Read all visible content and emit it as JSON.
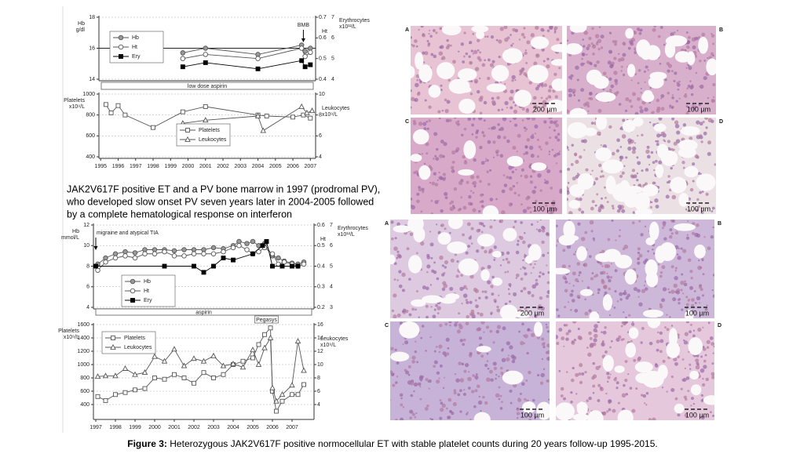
{
  "note_lines": [
    "JAK2V617F positive ET and a PV bone marrow in 1997 (prodromal PV),",
    "who developed slow onset PV seven years later in 2004-2005 followed",
    "by a complete hematological response on interferon"
  ],
  "caption": {
    "label": "Figure 3:",
    "text": "Heterozygous JAK2V617F positive normocellular ET with stable platelet counts during 20 years follow-up 1995-2015."
  },
  "histology": [
    [
      {
        "label": "A",
        "scale": "200 µm"
      },
      {
        "label": "B",
        "scale": "100 µm"
      },
      {
        "label": "C",
        "scale": "100 µm"
      },
      {
        "label": "D",
        "scale": "100 µm"
      }
    ],
    [
      {
        "label": "A",
        "scale": "200 µm"
      },
      {
        "label": "B",
        "scale": "100 µm"
      },
      {
        "label": "C",
        "scale": "100 µm"
      },
      {
        "label": "D",
        "scale": "100 µm"
      }
    ]
  ],
  "chart_data": [
    {
      "type": "line",
      "xlim": [
        1994.9,
        2007.3
      ],
      "ylim": [
        14,
        18
      ],
      "yticks": [
        14,
        16,
        18
      ],
      "y2lim": [
        0.4,
        0.7
      ],
      "y2ticks": [
        0.4,
        0.5,
        0.6,
        0.7
      ],
      "y3lim": [
        4,
        7
      ],
      "y3ticks": [
        4,
        5,
        6,
        7
      ],
      "grid": true,
      "hlines": [
        16
      ],
      "ylabel": [
        "Hb",
        "g/dl"
      ],
      "y2label": [
        "Ht"
      ],
      "y3label": [
        "Erythrocytes",
        "x10¹²/L"
      ],
      "band": "low dose aspirin",
      "annotations": [
        {
          "text": "BMB",
          "x": 2006.6
        }
      ],
      "series": [
        {
          "name": "Hb",
          "color": "#555555",
          "fill": "#999999",
          "marker": "circle",
          "x": [
            1999.7,
            2001,
            2004,
            2006.5,
            2006.7,
            2007
          ],
          "values": [
            15.7,
            16.0,
            15.6,
            16.2,
            15.8,
            16.0
          ]
        },
        {
          "name": "Ht",
          "axis": "y2",
          "color": "#555555",
          "fill": "#ffffff",
          "marker": "circle",
          "x": [
            1999.7,
            2001,
            2004,
            2006.5,
            2006.7,
            2007
          ],
          "values": [
            0.5,
            0.52,
            0.5,
            0.55,
            0.51,
            0.53
          ]
        },
        {
          "name": "Ery",
          "axis": "y3",
          "color": "#000000",
          "fill": "#000000",
          "marker": "square",
          "x": [
            1999.7,
            2001,
            2004,
            2006.5,
            2006.7,
            2007
          ],
          "values": [
            4.6,
            4.8,
            4.5,
            4.9,
            4.6,
            4.7
          ]
        }
      ]
    },
    {
      "type": "line",
      "xlim": [
        1994.9,
        2007.3
      ],
      "xticks": [
        1995,
        1996,
        1997,
        1998,
        1999,
        2000,
        2001,
        2002,
        2003,
        2004,
        2005,
        2006,
        2007
      ],
      "ylim": [
        400,
        1000
      ],
      "yticks": [
        400,
        600,
        800,
        1000
      ],
      "y2lim": [
        4,
        10
      ],
      "y2ticks": [
        4,
        6,
        8,
        10
      ],
      "grid": true,
      "ylabel": [
        "Platelets",
        "x10⁹/L"
      ],
      "y2label": [
        "Leukocytes",
        "x10⁹/L"
      ],
      "series": [
        {
          "name": "Platelets",
          "color": "#555555",
          "fill": "#ffffff",
          "marker": "square",
          "x": [
            1995.3,
            1995.6,
            1996,
            1996.4,
            1998,
            1999.7,
            2001,
            2004,
            2004.5,
            2006,
            2006.6,
            2007
          ],
          "values": [
            900,
            820,
            890,
            800,
            680,
            830,
            880,
            800,
            790,
            780,
            800,
            770
          ]
        },
        {
          "name": "Leukocytes",
          "axis": "y2",
          "color": "#555555",
          "fill": "#ffffff",
          "marker": "triangle",
          "x": [
            1999.7,
            2001,
            2004,
            2004.3,
            2006.5,
            2006.8,
            2007.1
          ],
          "values": [
            7.2,
            7.5,
            7.9,
            6.5,
            8.8,
            8.2,
            8.4
          ]
        }
      ]
    },
    {
      "type": "line",
      "xlim": [
        1996.88,
        2008.12
      ],
      "ylim": [
        4,
        12
      ],
      "yticks": [
        4,
        6,
        8,
        10,
        12
      ],
      "y2lim": [
        0.2,
        0.6
      ],
      "y2ticks": [
        0.2,
        0.3,
        0.4,
        0.5,
        0.6
      ],
      "y3lim": [
        3,
        7
      ],
      "y3ticks": [
        3,
        4,
        5,
        6,
        7
      ],
      "grid": true,
      "ylabel": [
        "Hb",
        "mmol/L"
      ],
      "y2label": [
        "Ht"
      ],
      "y3label": [
        "Erythrocytes",
        "x10¹²/L"
      ],
      "band": "aspirin",
      "annotations": [
        {
          "text": "migraine and atypical TIA",
          "x": 1997
        }
      ],
      "series": [
        {
          "name": "Hb",
          "color": "#555555",
          "fill": "#999999",
          "marker": "circle",
          "x": [
            1997.1,
            1997.5,
            1998.0,
            1998.5,
            1999,
            1999.5,
            2000,
            2000.5,
            2001,
            2001.5,
            2002,
            2002.5,
            2003,
            2003.5,
            2004,
            2004.3,
            2004.7,
            2005,
            2005.3,
            2005.6,
            2006,
            2006.3,
            2006.6,
            2007,
            2007.3,
            2007.6
          ],
          "values": [
            8.2,
            8.8,
            9.2,
            9.4,
            9.3,
            9.6,
            9.6,
            9.6,
            9.5,
            9.6,
            9.6,
            9.6,
            9.8,
            9.7,
            10.0,
            10.4,
            10.2,
            10.4,
            10.0,
            10.2,
            9.0,
            8.8,
            8.5,
            8.3,
            8.2,
            8.4
          ]
        },
        {
          "name": "Ht",
          "axis": "y2",
          "color": "#555555",
          "fill": "#ffffff",
          "marker": "circle",
          "x": [
            1997.1,
            1997.5,
            1998.0,
            1998.5,
            1999,
            1999.5,
            2000,
            2000.5,
            2001,
            2001.5,
            2002,
            2002.5,
            2003,
            2003.5,
            2004,
            2004.3,
            2004.7,
            2005,
            2005.3,
            2005.6,
            2006,
            2006.3,
            2006.6,
            2007,
            2007.3,
            2007.6
          ],
          "values": [
            0.38,
            0.42,
            0.44,
            0.45,
            0.44,
            0.46,
            0.46,
            0.47,
            0.45,
            0.45,
            0.46,
            0.46,
            0.46,
            0.47,
            0.49,
            0.5,
            0.48,
            0.46,
            0.47,
            0.49,
            0.46,
            0.41,
            0.42,
            0.41,
            0.4,
            0.41
          ]
        },
        {
          "name": "Ery",
          "axis": "y3",
          "color": "#000000",
          "fill": "#000000",
          "marker": "square",
          "x": [
            1997,
            2000.5,
            2002,
            2002.5,
            2003,
            2003.5,
            2004,
            2005,
            2005.5,
            2005.7,
            2006,
            2006.5,
            2007,
            2007.3
          ],
          "values": [
            5.0,
            5.0,
            5.0,
            4.7,
            5.0,
            5.4,
            5.3,
            5.6,
            6.0,
            6.2,
            5.0,
            5.0,
            5.0,
            5.0
          ]
        }
      ]
    },
    {
      "type": "line",
      "xlim": [
        1996.88,
        2008.12
      ],
      "xticks": [
        1997,
        1998,
        1999,
        2000,
        2001,
        2002,
        2003,
        2004,
        2005,
        2006,
        2007
      ],
      "ylim": [
        200,
        1600
      ],
      "yticks": [
        400,
        600,
        800,
        1000,
        1200,
        1400,
        1600
      ],
      "y2lim": [
        2,
        16
      ],
      "y2ticks": [
        4,
        6,
        8,
        10,
        12,
        14,
        16
      ],
      "grid": true,
      "ylabel": [
        "Platelets",
        "x10⁹/L"
      ],
      "y2label": [
        "Leukocytes",
        "x10⁹/L"
      ],
      "annotations": [
        {
          "text": "Pegasys",
          "x": 2005.7
        }
      ],
      "series": [
        {
          "name": "Platelets",
          "color": "#555555",
          "fill": "#ffffff",
          "marker": "square",
          "x": [
            1997.1,
            1997.5,
            1998,
            1998.5,
            1999,
            1999.5,
            2000,
            2000.5,
            2001,
            2001.5,
            2002,
            2002.5,
            2003,
            2003.5,
            2004,
            2004.5,
            2005,
            2005.3,
            2005.6,
            2005.9,
            2006,
            2006.2,
            2006.5,
            2007,
            2007.3,
            2007.6
          ],
          "values": [
            520,
            460,
            550,
            580,
            620,
            640,
            800,
            780,
            850,
            800,
            720,
            880,
            800,
            850,
            1000,
            1050,
            1100,
            1300,
            1450,
            1550,
            600,
            300,
            450,
            550,
            550,
            700
          ]
        },
        {
          "name": "Leukocytes",
          "axis": "y2",
          "color": "#555555",
          "fill": "#ffffff",
          "marker": "triangle",
          "x": [
            1997.1,
            1997.5,
            1998,
            1998.5,
            1999,
            1999.5,
            2000,
            2000.5,
            2001,
            2001.5,
            2002,
            2002.5,
            2003,
            2003.5,
            2004,
            2004.5,
            2005,
            2005.3,
            2005.6,
            2005.9,
            2006,
            2006.2,
            2006.5,
            2007,
            2007.3,
            2007.6
          ],
          "values": [
            8.2,
            8.3,
            8.3,
            9.4,
            8.5,
            8.8,
            11.2,
            10.5,
            12.3,
            9.8,
            10.9,
            10.5,
            11.3,
            9.8,
            10.1,
            9.6,
            12.2,
            10.0,
            12.5,
            14.0,
            6.5,
            4.5,
            5.5,
            6.9,
            13.5,
            9.1
          ]
        }
      ]
    }
  ]
}
